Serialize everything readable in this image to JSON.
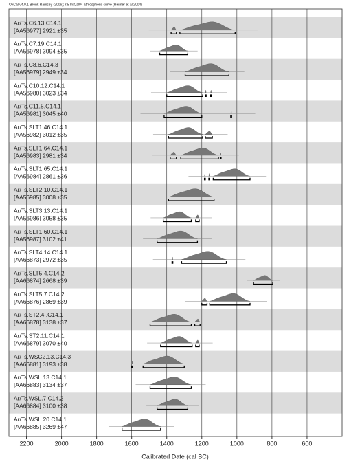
{
  "chart_data": {
    "type": "range-plot",
    "title": "OxCal v4.0.1 Bronk Ramsey (2006); r:5 IntCal04 atmospheric curve (Reimer et al 2004)",
    "x_label": "Calibrated Date (cal BC)",
    "xlim": [
      2300,
      400
    ],
    "xticks": [
      2200,
      2000,
      1800,
      1600,
      1400,
      1200,
      1000,
      800,
      600
    ],
    "grid": true,
    "color": "#777777",
    "samples": [
      {
        "name": "Ar/Ts.C6.13.C14.1",
        "info": "[AA56977] 2921 ±35",
        "ranges": [
          [
            1375,
            1345
          ],
          [
            1325,
            1010
          ]
        ]
      },
      {
        "name": "Ar/Ts.C7.19.C14.1",
        "info": "[AA56978] 3094 ±35",
        "ranges": [
          [
            1440,
            1280
          ]
        ]
      },
      {
        "name": "Ar/Ts.C8.6.C14.3",
        "info": "[AA56979] 2949 ±34",
        "ranges": [
          [
            1295,
            1045
          ]
        ]
      },
      {
        "name": "Ar/Ts.C10.12.C14.1",
        "info": "[AA56980] 3023 ±34",
        "ranges": [
          [
            1400,
            1195
          ],
          [
            1180,
            1175
          ],
          [
            1150,
            1145
          ]
        ]
      },
      {
        "name": "Ar/Ts.C11.5.C14.1",
        "info": "[AA56981] 3045 ±40",
        "ranges": [
          [
            1415,
            1200
          ],
          [
            1035,
            1030
          ]
        ]
      },
      {
        "name": "Ar/Ts.SLT1.46.C14.1",
        "info": "[AA56982] 3012 ±35",
        "ranges": [
          [
            1390,
            1195
          ],
          [
            1180,
            1140
          ]
        ]
      },
      {
        "name": "Ar/Ts.SLT1.64.C14.1",
        "info": "[AA56983] 2981 ±34",
        "ranges": [
          [
            1380,
            1345
          ],
          [
            1320,
            1105
          ],
          [
            1095,
            1090
          ]
        ]
      },
      {
        "name": "Ar/Ts.SLT1.65.C14.1",
        "info": "[AA56984] 2861 ±36",
        "ranges": [
          [
            1185,
            1180
          ],
          [
            1160,
            1155
          ],
          [
            1135,
            925
          ]
        ]
      },
      {
        "name": "Ar/Ts.SLT2.10.C14.1",
        "info": "[AA56985] 3008 ±35",
        "ranges": [
          [
            1390,
            1130
          ]
        ]
      },
      {
        "name": "Ar/Ts.SLT3.13.C14.1",
        "info": "[AA56986] 3058 ±35",
        "ranges": [
          [
            1420,
            1260
          ],
          [
            1235,
            1215
          ]
        ]
      },
      {
        "name": "Ar/Ts.SLT1.60.C14.1",
        "info": "[AA56987] 3102 ±41",
        "ranges": [
          [
            1455,
            1225
          ]
        ]
      },
      {
        "name": "Ar/Ts.SLT4.14.C14.1",
        "info": "[AA66873] 2972 ±35",
        "ranges": [
          [
            1370,
            1365
          ],
          [
            1315,
            1060
          ]
        ]
      },
      {
        "name": "Ar/Ts.SLT5.4.C14.2",
        "info": "[AA66874] 2668 ±39",
        "ranges": [
          [
            905,
            795
          ]
        ]
      },
      {
        "name": "Ar/Ts.SLT5.7.C14.2",
        "info": "[AA66876] 2869 ±39",
        "ranges": [
          [
            1200,
            1170
          ],
          [
            1155,
            925
          ]
        ]
      },
      {
        "name": "Ar/Ts.ST2.4..C14.1",
        "info": "[AA66878] 3138 ±37",
        "ranges": [
          [
            1495,
            1260
          ],
          [
            1240,
            1210
          ]
        ]
      },
      {
        "name": "Ar/Ts.ST2.11.C14.1",
        "info": "[AA66879] 3070 ±40",
        "ranges": [
          [
            1435,
            1255
          ],
          [
            1235,
            1215
          ]
        ]
      },
      {
        "name": "Ar/Ts.WSC2.13.C14.3",
        "info": "[AA66881] 3193 ±38",
        "ranges": [
          [
            1600,
            1595
          ],
          [
            1535,
            1300
          ]
        ]
      },
      {
        "name": "Ar/Ts.WSL.13.C14.1",
        "info": "[AA66883] 3134 ±37",
        "ranges": [
          [
            1495,
            1260
          ]
        ]
      },
      {
        "name": "Ar/Ts.WSL.7.C14.2",
        "info": "[AA66884] 3100 ±38",
        "ranges": [
          [
            1455,
            1280
          ]
        ]
      },
      {
        "name": "Ar/Ts.WSL.20.C14.1",
        "info": "[AA66885] 3269 ±47",
        "ranges": [
          [
            1655,
            1435
          ]
        ]
      }
    ]
  }
}
